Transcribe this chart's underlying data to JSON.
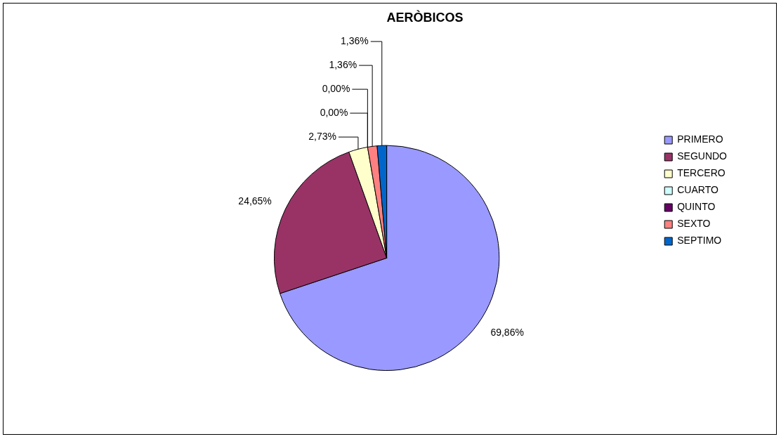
{
  "chart_data": {
    "type": "pie",
    "title": "AERÒBICOS",
    "categories": [
      "PRIMERO",
      "SEGUNDO",
      "TERCERO",
      "CUARTO",
      "QUINTO",
      "SEXTO",
      "SEPTIMO"
    ],
    "values": [
      69.86,
      24.65,
      2.73,
      0,
      0,
      1.36,
      1.36
    ],
    "colors": [
      "#9999ff",
      "#993366",
      "#ffffcc",
      "#ccffff",
      "#660066",
      "#ff8080",
      "#0066cc"
    ],
    "value_labels": [
      "69,86%",
      "24,65%",
      "2,73%",
      "0,00%",
      "0,00%",
      "1,36%",
      "1,36%"
    ],
    "legend": "right"
  }
}
